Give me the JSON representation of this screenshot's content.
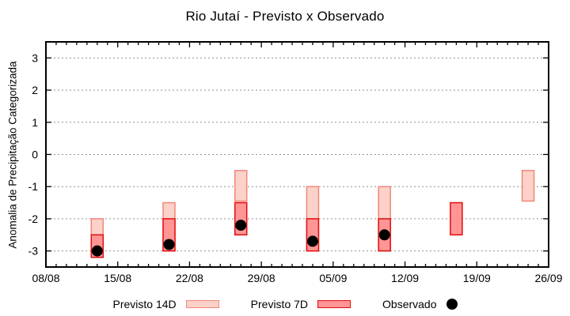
{
  "title": "Rio Jutaí - Previsto x Observado",
  "colors": {
    "background": "#ffffff",
    "frame": "#000000",
    "grid": "#909090",
    "previsto_14d_fill": "#fbd1ca",
    "previsto_14d_border": "#ef8878",
    "previsto_7d_fill": "#ff9595",
    "previsto_7d_border": "#e30e0e",
    "observado": "#000000"
  },
  "legend": {
    "items": [
      {
        "label": "Previsto 14D",
        "swatch": "light-pink-rect"
      },
      {
        "label": "Previsto 7D",
        "swatch": "red-rect"
      },
      {
        "label": "Observado",
        "swatch": "black-dot"
      }
    ]
  },
  "chart_data": {
    "type": "bar",
    "subtype": "weekly range bars (forecast intervals) + observed scatter dots",
    "title": "Rio Jutaí - Previsto x Observado",
    "xlabel": "",
    "ylabel": "Anomalia de Precipitação Categorizada",
    "ylim": [
      -3.5,
      3.5
    ],
    "yticks": [
      3,
      2,
      1,
      0,
      -1,
      -2,
      -3
    ],
    "grid": "horizontal dotted lines at every integer y",
    "legend_position": "bottom center",
    "days_total": 49,
    "minor_tick_every_days": 1,
    "xticks": {
      "labels": [
        "08/08",
        "15/08",
        "22/08",
        "29/08",
        "05/09",
        "12/09",
        "19/09",
        "26/09"
      ],
      "day_offsets": [
        0,
        7,
        14,
        21,
        28,
        35,
        42,
        49
      ]
    },
    "series": [
      {
        "name": "Previsto 14D",
        "type": "range-bar",
        "fill": "#fbd1ca",
        "border": "#ef8878",
        "points": [
          {
            "date": "13/08",
            "day": 5,
            "low": -3.2,
            "high": -2.0
          },
          {
            "date": "20/08",
            "day": 12,
            "low": -3.0,
            "high": -1.5
          },
          {
            "date": "27/08",
            "day": 19,
            "low": -1.45,
            "high": -0.5
          },
          {
            "date": "03/09",
            "day": 26,
            "low": -3.0,
            "high": -1.0
          },
          {
            "date": "10/09",
            "day": 33,
            "low": -3.0,
            "high": -1.0
          },
          {
            "date": "24/09",
            "day": 47,
            "low": -1.45,
            "high": -0.5
          }
        ]
      },
      {
        "name": "Previsto 7D",
        "type": "range-bar",
        "fill": "#ff9595",
        "border": "#e30e0e",
        "points": [
          {
            "date": "13/08",
            "day": 5,
            "low": -3.2,
            "high": -2.5
          },
          {
            "date": "20/08",
            "day": 12,
            "low": -3.0,
            "high": -2.0
          },
          {
            "date": "27/08",
            "day": 19,
            "low": -2.5,
            "high": -1.5
          },
          {
            "date": "03/09",
            "day": 26,
            "low": -3.0,
            "high": -2.0
          },
          {
            "date": "10/09",
            "day": 33,
            "low": -3.0,
            "high": -2.0
          },
          {
            "date": "17/09",
            "day": 40,
            "low": -2.5,
            "high": -1.5
          }
        ]
      },
      {
        "name": "Observado",
        "type": "scatter",
        "color": "#000000",
        "points": [
          {
            "date": "13/08",
            "day": 5,
            "value": -3.0
          },
          {
            "date": "20/08",
            "day": 12,
            "value": -2.8
          },
          {
            "date": "27/08",
            "day": 19,
            "value": -2.2
          },
          {
            "date": "03/09",
            "day": 26,
            "value": -2.7
          },
          {
            "date": "10/09",
            "day": 33,
            "value": -2.5
          }
        ]
      }
    ]
  }
}
